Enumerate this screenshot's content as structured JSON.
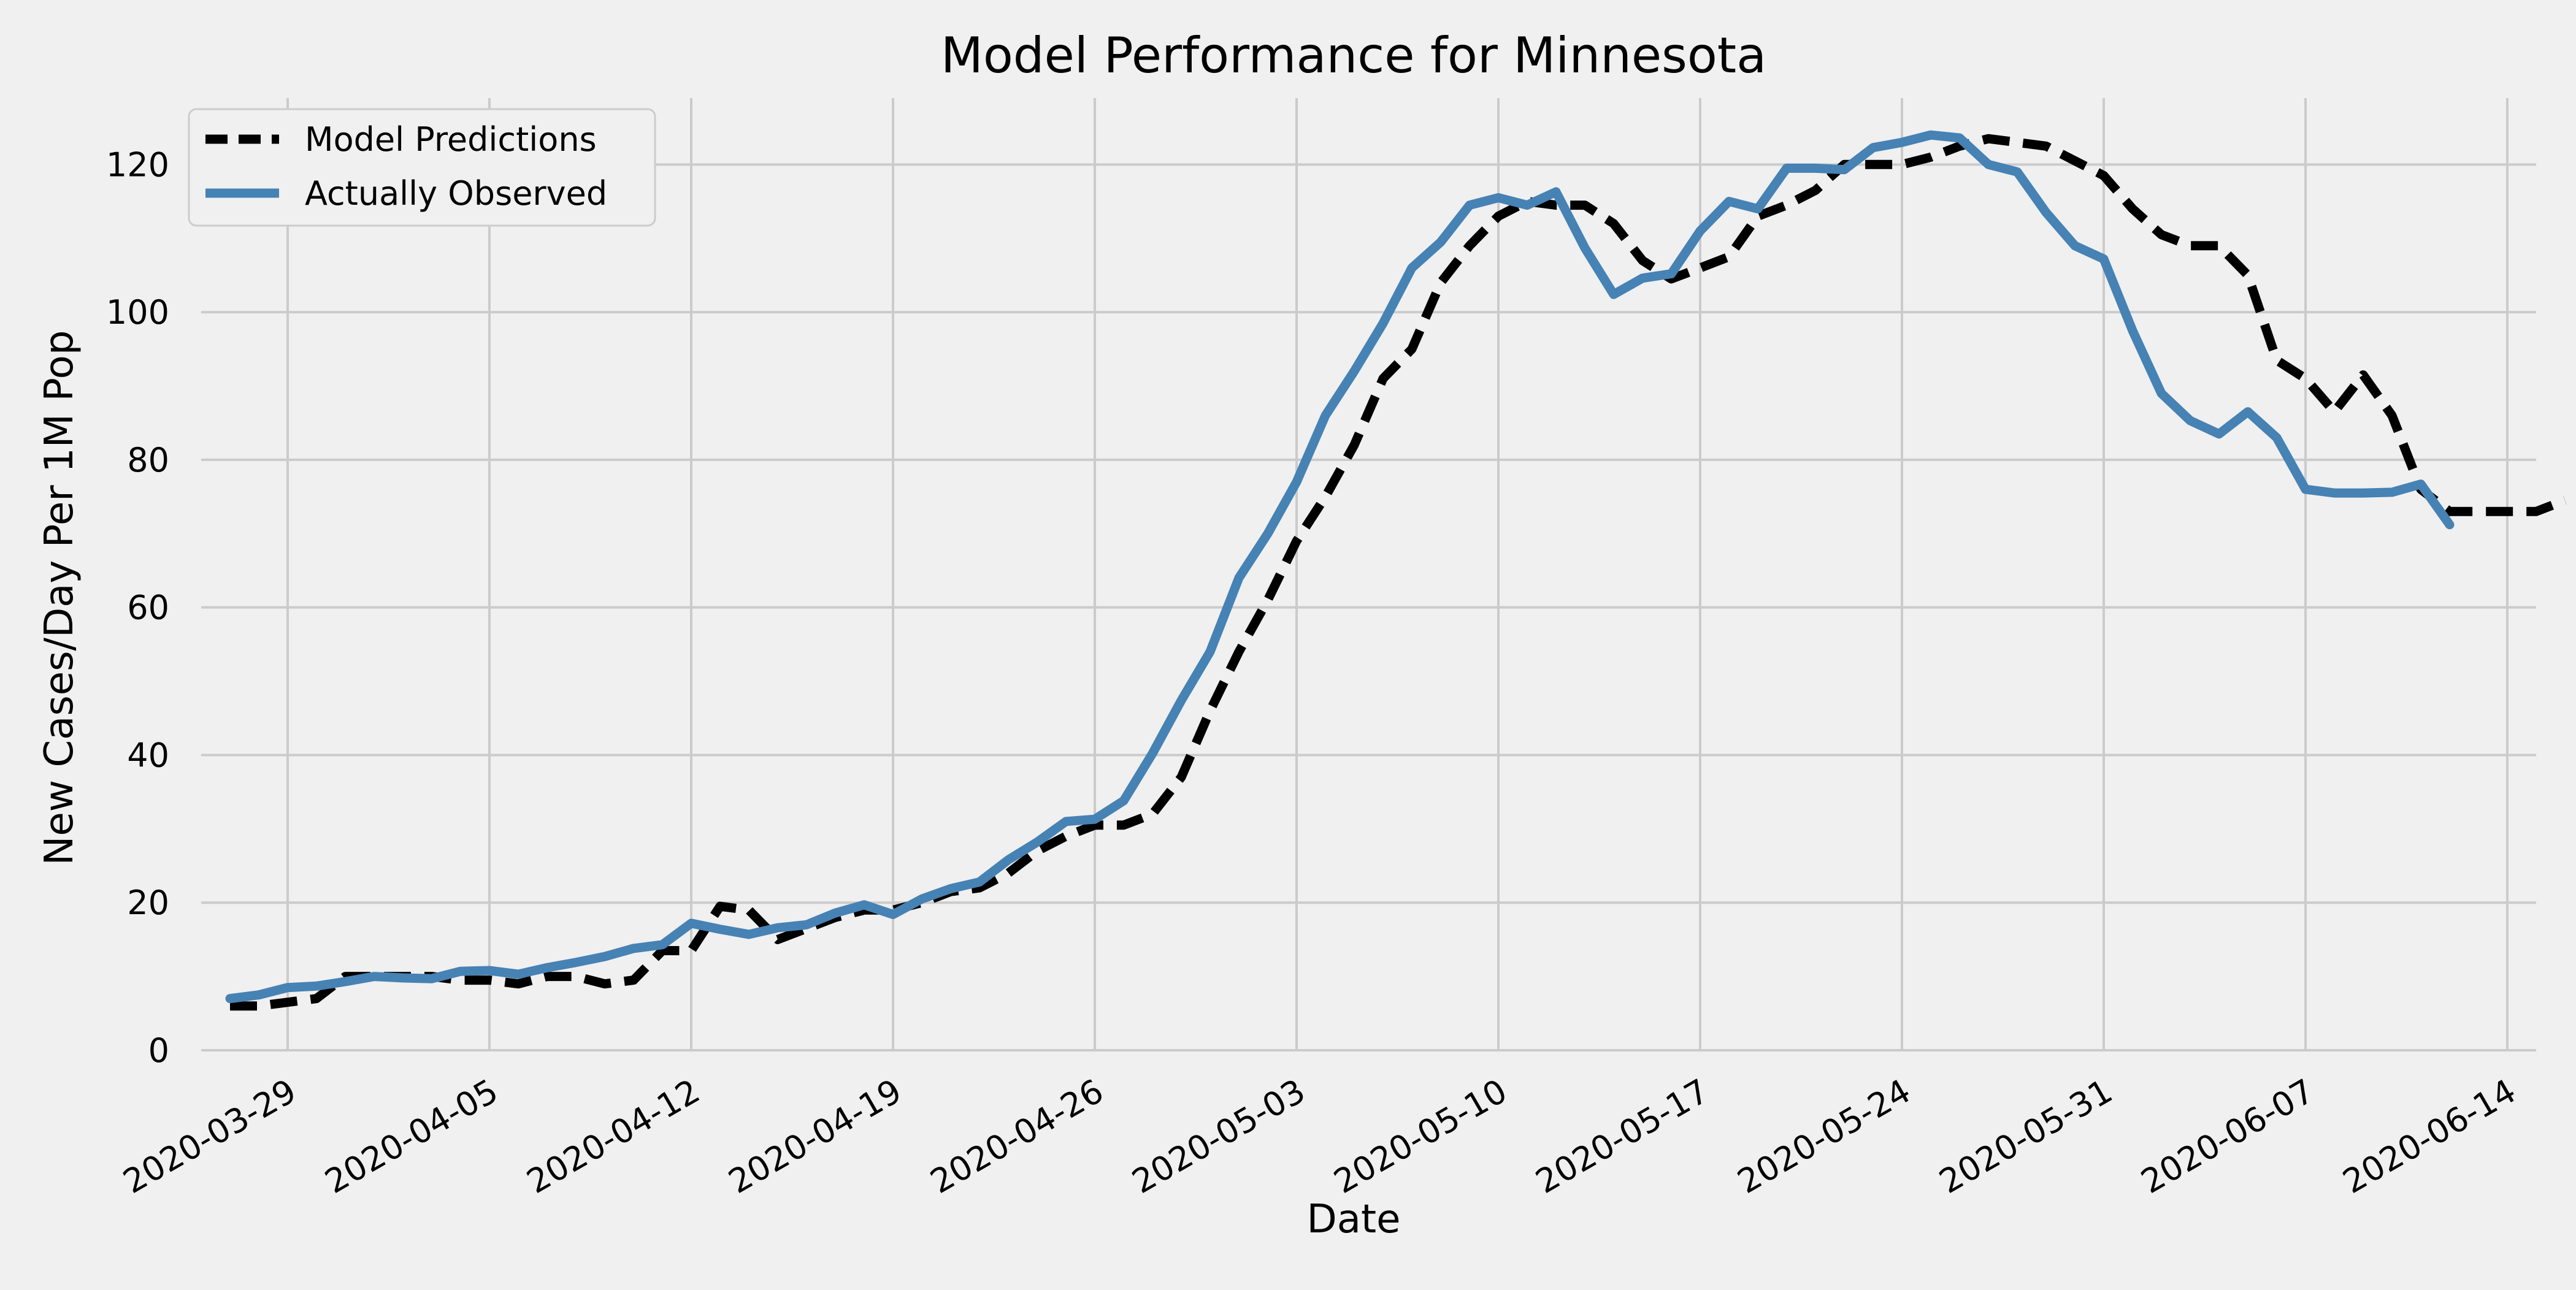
{
  "chart_data": {
    "type": "line",
    "title": "Model Performance for Minnesota",
    "xlabel": "Date",
    "ylabel": "New Cases/Day Per 1M Pop",
    "x_start": "2020-03-27",
    "xlim": [
      "2020-03-26",
      "2020-06-15"
    ],
    "ylim": [
      0,
      129
    ],
    "x_ticks": [
      "2020-03-29",
      "2020-04-05",
      "2020-04-12",
      "2020-04-19",
      "2020-04-26",
      "2020-05-03",
      "2020-05-10",
      "2020-05-17",
      "2020-05-24",
      "2020-05-31",
      "2020-06-07",
      "2020-06-14"
    ],
    "y_ticks": [
      0,
      20,
      40,
      60,
      80,
      100,
      120
    ],
    "grid": true,
    "legend_position": "top-left",
    "series": [
      {
        "name": "Model Predictions",
        "color": "#000000",
        "style": "dashed",
        "values": [
          6,
          6,
          6.5,
          7,
          10,
          10,
          10,
          10,
          9.5,
          9.5,
          9,
          10,
          10,
          9,
          9.5,
          13.5,
          13.5,
          19.5,
          19,
          15,
          16.5,
          18,
          19,
          19,
          20,
          21.5,
          22,
          24,
          27,
          29,
          30.5,
          30.5,
          32,
          37,
          46,
          54,
          61,
          69,
          75,
          82,
          91,
          95,
          104,
          109,
          113,
          115,
          114.5,
          114.5,
          112,
          107,
          104.5,
          106,
          107.5,
          113,
          114.5,
          116.5,
          120,
          120,
          120,
          121,
          122.5,
          123.5,
          123,
          122.5,
          120.5,
          118.5,
          114,
          110.5,
          109,
          109,
          105,
          93.5,
          91,
          86.5,
          91.5,
          86,
          76,
          73,
          73,
          73,
          73,
          74.5
        ]
      },
      {
        "name": "Actually  Observed",
        "color": "#4682b4",
        "style": "solid",
        "values": [
          7,
          7.5,
          8.5,
          8.7,
          9.3,
          10,
          9.8,
          9.7,
          10.7,
          10.8,
          10.3,
          11.2,
          11.9,
          12.7,
          13.8,
          14.3,
          17.2,
          16.4,
          15.7,
          16.6,
          17,
          18.6,
          19.7,
          18.4,
          20.5,
          21.9,
          22.8,
          25.8,
          28.2,
          31,
          31.3,
          33.8,
          40.2,
          47.4,
          54,
          64,
          70,
          77,
          86,
          92,
          98.5,
          106,
          109.5,
          114.5,
          115.5,
          114.5,
          116.3,
          108.7,
          102.4,
          104.6,
          105.2,
          111,
          115,
          114,
          119.5,
          119.5,
          119.3,
          122.3,
          123,
          124,
          123.6,
          120,
          119,
          113.5,
          109,
          107.2,
          97.5,
          89,
          85.3,
          83.5,
          86.5,
          83,
          76,
          75.5,
          75.5,
          75.6,
          76.7,
          71.2
        ]
      }
    ]
  }
}
